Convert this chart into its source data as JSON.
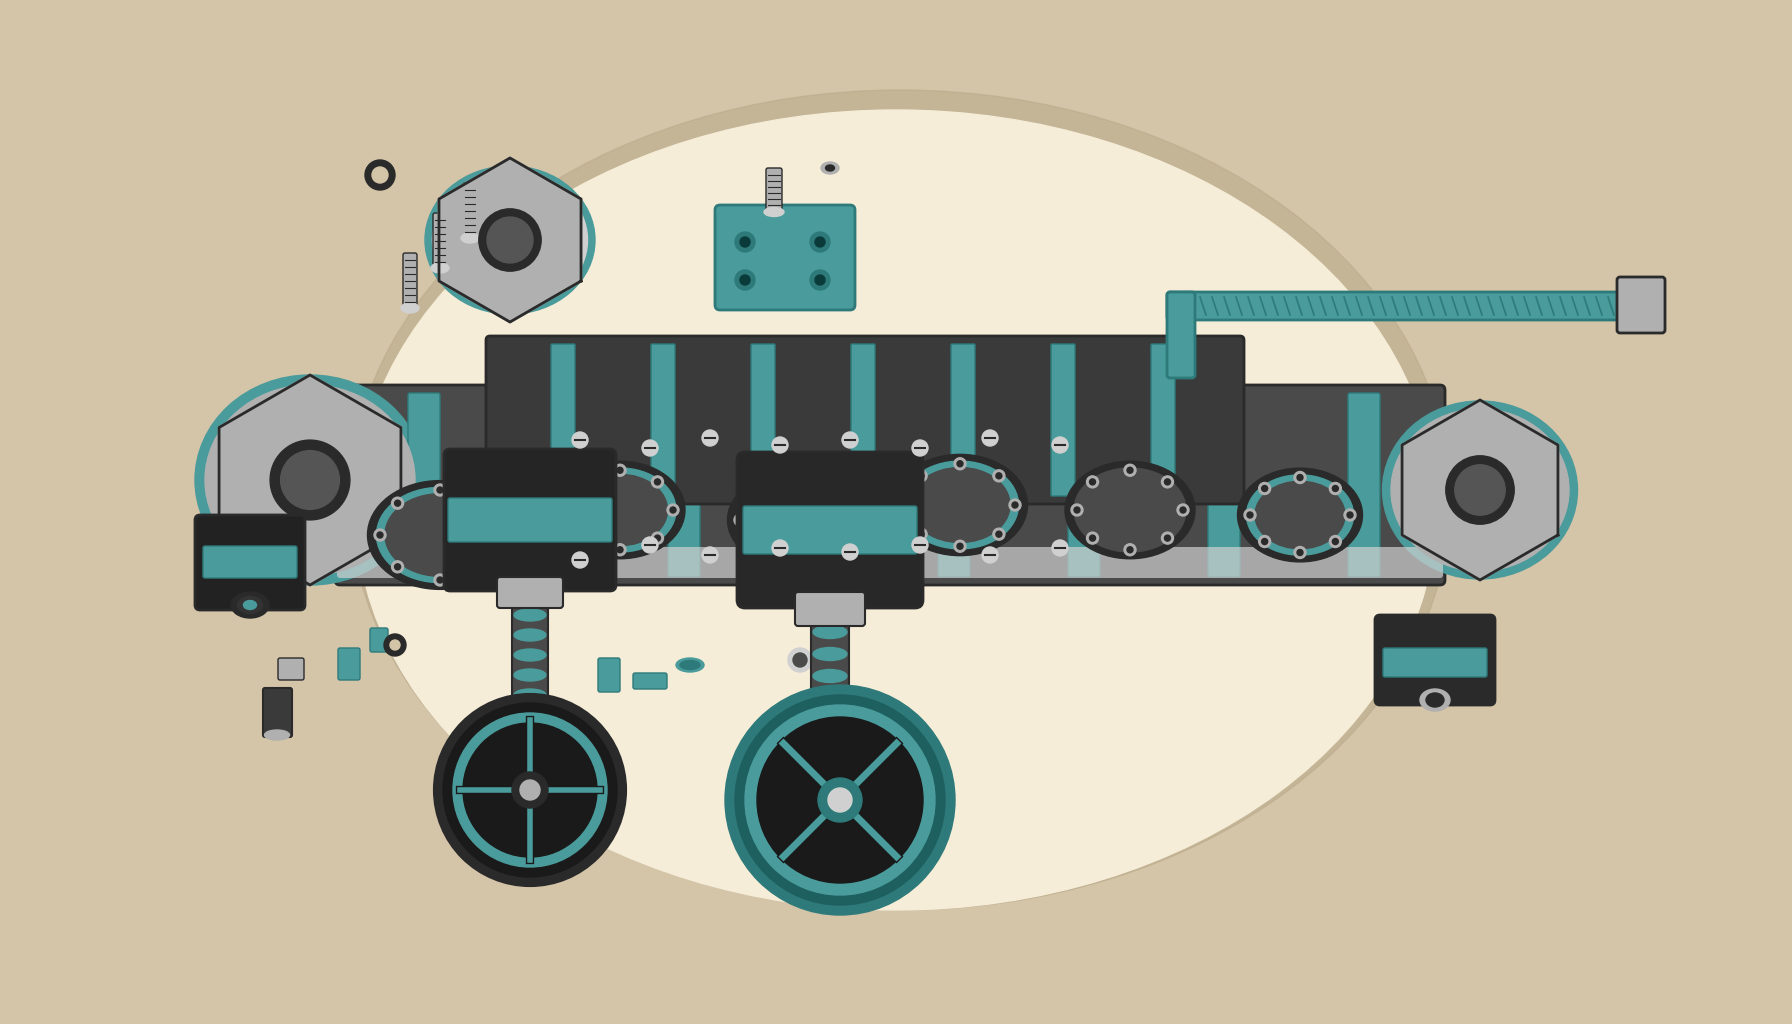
{
  "background_color": "#D4C4A8",
  "oval_color": "#F5EDD8",
  "oval_shadow_color": "#C8B898",
  "teal": "#4A9B9B",
  "teal_dark": "#2E7A7A",
  "teal_mid": "#5AACAC",
  "dark_metal": "#2A2A2A",
  "mid_metal": "#4A4A4A",
  "light_metal": "#8A8A8A",
  "silver": "#B0B0B0",
  "silver_light": "#D0D0D0",
  "dark_teal_accent": "#1E5E5E",
  "highlight": "#E8E8E8",
  "shadow": "#1A1A1A",
  "bolt_color": "#909090",
  "figsize": [
    17.92,
    10.24
  ],
  "dpi": 100
}
